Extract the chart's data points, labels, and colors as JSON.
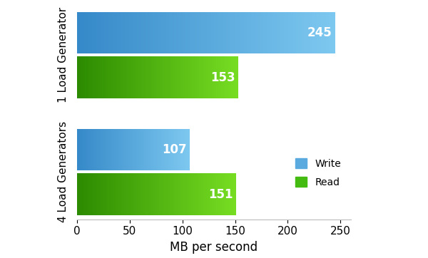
{
  "groups": [
    "1 Load Generator",
    "4 Load Generators"
  ],
  "write_values": [
    245,
    107
  ],
  "read_values": [
    153,
    151
  ],
  "write_dark": "#3589C8",
  "write_light": "#7DC8F0",
  "read_dark": "#2B8A00",
  "read_light": "#77DD22",
  "xlim": [
    0,
    260
  ],
  "xlabel": "MB per second",
  "legend_write": "Write",
  "legend_read": "Read",
  "label_fontsize": 11,
  "value_fontsize": 12,
  "tick_fontsize": 11,
  "xlabel_fontsize": 12,
  "background_color": "#ffffff",
  "grid_color": "#e0e0e0",
  "xticks": [
    0,
    50,
    100,
    150,
    200,
    250
  ]
}
